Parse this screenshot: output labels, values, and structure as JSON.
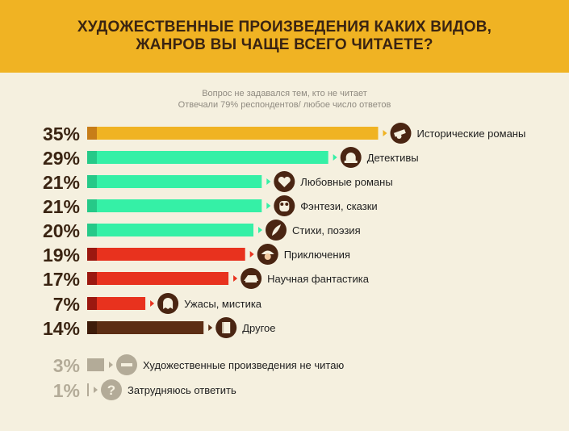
{
  "header": {
    "title_line1": "ХУДОЖЕСТВЕННЫЕ ПРОИЗВЕДЕНИЯ КАКИХ ВИДОВ,",
    "title_line2": "ЖАНРОВ ВЫ ЧАЩЕ ВСЕГО ЧИТАЕТЕ?"
  },
  "subtitle": {
    "line1": "Вопрос не задавался тем, кто не читает",
    "line2": "Отвечали 79% респондентов/ любое число ответов"
  },
  "colors": {
    "header_bg": "#f0b323",
    "background": "#f5f0df",
    "yellow": "#f0b323",
    "green": "#35f0a6",
    "red": "#e8321e",
    "brown": "#5c2e14",
    "gray": "#b3ab98",
    "icon_bg": "#4a2512"
  },
  "chart_data": {
    "type": "bar",
    "orientation": "horizontal",
    "unit": "%",
    "categories": [
      "Исторические романы",
      "Детективы",
      "Любовные романы",
      "Фэнтези, сказки",
      "Стихи, поэзия",
      "Приключения",
      "Научная фантастика",
      "Ужасы, мистика",
      "Другое",
      "Художественные произведения не читаю",
      "Затрудняюсь ответить"
    ],
    "values": [
      35,
      29,
      21,
      21,
      20,
      19,
      17,
      7,
      14,
      3,
      1
    ],
    "value_labels": [
      "35%",
      "29%",
      "21%",
      "21%",
      "20%",
      "19%",
      "17%",
      "7%",
      "14%",
      "3%",
      "1%"
    ],
    "bar_colors": [
      "yellow",
      "green",
      "green",
      "green",
      "green",
      "red",
      "red",
      "red",
      "brown",
      "gray",
      "gray"
    ],
    "icons": [
      "cannon-icon",
      "siren-icon",
      "heart-icon",
      "owl-icon",
      "quill-icon",
      "pirate-icon",
      "spaceship-icon",
      "ghost-icon",
      "book-icon",
      "no-entry-icon",
      "question-icon"
    ]
  }
}
